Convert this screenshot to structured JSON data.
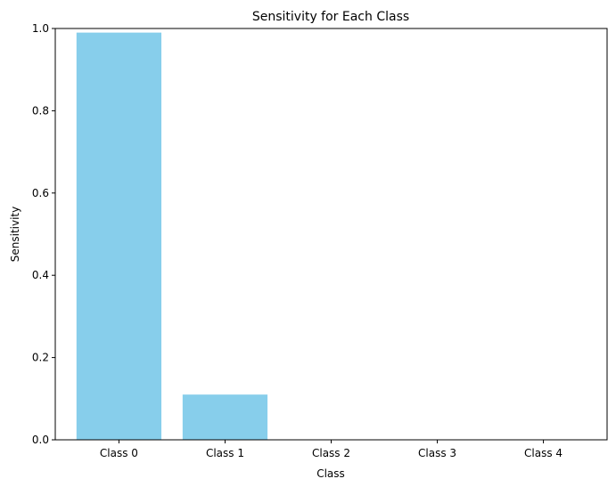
{
  "chart_data": {
    "type": "bar",
    "title": "Sensitivity for Each Class",
    "xlabel": "Class",
    "ylabel": "Sensitivity",
    "categories": [
      "Class 0",
      "Class 1",
      "Class 2",
      "Class 3",
      "Class 4"
    ],
    "values": [
      0.99,
      0.11,
      0.0,
      0.0,
      0.0
    ],
    "ylim": [
      0,
      1.0
    ],
    "yticks": [
      "0.0",
      "0.2",
      "0.4",
      "0.6",
      "0.8",
      "1.0"
    ],
    "bar_color": "#87ceeb",
    "grid": false,
    "legend": "none"
  }
}
